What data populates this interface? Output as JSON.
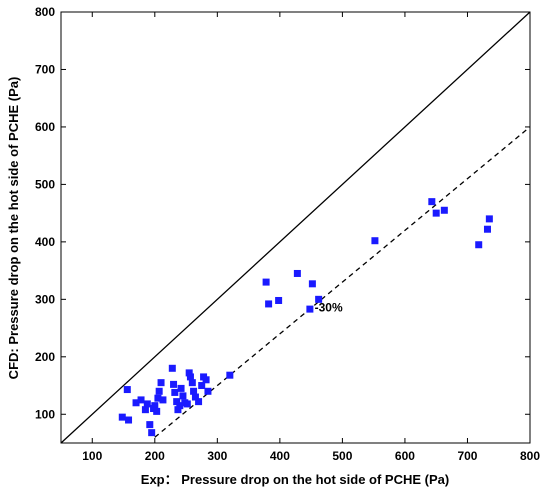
{
  "chart_data": {
    "type": "scatter",
    "xlabel": "Exp： Pressure drop on the hot side of PCHE (Pa)",
    "ylabel": "CFD: Pressure drop on the hot side of PCHE (Pa)",
    "xlim": [
      50,
      800
    ],
    "ylim": [
      50,
      800
    ],
    "xticks": [
      100,
      200,
      300,
      400,
      500,
      600,
      700,
      800
    ],
    "yticks": [
      100,
      200,
      300,
      400,
      500,
      600,
      700,
      800
    ],
    "grid": false,
    "point_color": "#1a1aff",
    "reference_lines": [
      {
        "kind": "solid",
        "points": [
          [
            50,
            50
          ],
          [
            800,
            800
          ]
        ]
      },
      {
        "kind": "dashed",
        "points": [
          [
            200,
            60
          ],
          [
            800,
            600
          ]
        ]
      }
    ],
    "annotations": [
      {
        "text": "-30%",
        "x": 478,
        "y": 286
      }
    ],
    "points": [
      {
        "x": 148,
        "y": 95
      },
      {
        "x": 156,
        "y": 143
      },
      {
        "x": 158,
        "y": 90
      },
      {
        "x": 170,
        "y": 120
      },
      {
        "x": 178,
        "y": 125
      },
      {
        "x": 185,
        "y": 108
      },
      {
        "x": 188,
        "y": 118
      },
      {
        "x": 192,
        "y": 82
      },
      {
        "x": 195,
        "y": 68
      },
      {
        "x": 198,
        "y": 110
      },
      {
        "x": 200,
        "y": 115
      },
      {
        "x": 203,
        "y": 105
      },
      {
        "x": 205,
        "y": 128
      },
      {
        "x": 207,
        "y": 140
      },
      {
        "x": 210,
        "y": 155
      },
      {
        "x": 213,
        "y": 125
      },
      {
        "x": 228,
        "y": 180
      },
      {
        "x": 230,
        "y": 152
      },
      {
        "x": 232,
        "y": 138
      },
      {
        "x": 235,
        "y": 122
      },
      {
        "x": 237,
        "y": 108
      },
      {
        "x": 240,
        "y": 115
      },
      {
        "x": 242,
        "y": 145
      },
      {
        "x": 245,
        "y": 132
      },
      {
        "x": 248,
        "y": 120
      },
      {
        "x": 252,
        "y": 118
      },
      {
        "x": 255,
        "y": 172
      },
      {
        "x": 257,
        "y": 165
      },
      {
        "x": 260,
        "y": 155
      },
      {
        "x": 262,
        "y": 140
      },
      {
        "x": 265,
        "y": 130
      },
      {
        "x": 270,
        "y": 122
      },
      {
        "x": 275,
        "y": 150
      },
      {
        "x": 278,
        "y": 165
      },
      {
        "x": 282,
        "y": 160
      },
      {
        "x": 285,
        "y": 140
      },
      {
        "x": 320,
        "y": 168
      },
      {
        "x": 378,
        "y": 330
      },
      {
        "x": 382,
        "y": 292
      },
      {
        "x": 398,
        "y": 298
      },
      {
        "x": 428,
        "y": 345
      },
      {
        "x": 448,
        "y": 283
      },
      {
        "x": 452,
        "y": 327
      },
      {
        "x": 462,
        "y": 300
      },
      {
        "x": 552,
        "y": 402
      },
      {
        "x": 643,
        "y": 470
      },
      {
        "x": 650,
        "y": 450
      },
      {
        "x": 663,
        "y": 455
      },
      {
        "x": 718,
        "y": 395
      },
      {
        "x": 732,
        "y": 422
      },
      {
        "x": 735,
        "y": 440
      }
    ]
  }
}
